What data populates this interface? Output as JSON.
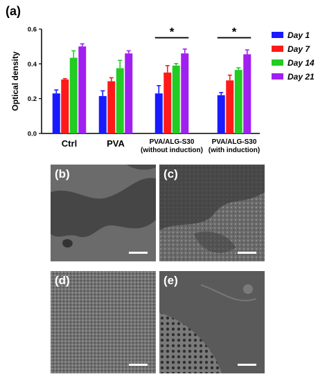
{
  "figure": {
    "main_label": "(a)"
  },
  "chart_data": {
    "type": "bar",
    "ylabel": "Optical density",
    "xlabel": "",
    "ylim": [
      0,
      0.6
    ],
    "yticks": [
      "0.0",
      "0.2",
      "0.4",
      "0.6"
    ],
    "grid": false,
    "legend_position": "right",
    "categories": [
      {
        "line1": "Ctrl",
        "line2": ""
      },
      {
        "line1": "PVA",
        "line2": ""
      },
      {
        "line1": "PVA/ALG-S30",
        "line2": "(without induction)"
      },
      {
        "line1": "PVA/ALG-S30",
        "line2": "(with induction)"
      }
    ],
    "series": [
      {
        "name": "Day 1",
        "color": "#1a1aff",
        "values": [
          0.23,
          0.215,
          0.23,
          0.22
        ],
        "errors": [
          0.02,
          0.03,
          0.045,
          0.015
        ]
      },
      {
        "name": "Day 7",
        "color": "#ff1a1a",
        "values": [
          0.31,
          0.3,
          0.35,
          0.305
        ],
        "errors": [
          0.005,
          0.02,
          0.04,
          0.03
        ]
      },
      {
        "name": "Day 14",
        "color": "#22cc22",
        "values": [
          0.435,
          0.375,
          0.39,
          0.365
        ],
        "errors": [
          0.04,
          0.045,
          0.012,
          0.012
        ]
      },
      {
        "name": "Day 21",
        "color": "#a020f0",
        "values": [
          0.5,
          0.46,
          0.46,
          0.455
        ],
        "errors": [
          0.015,
          0.015,
          0.025,
          0.025
        ]
      }
    ],
    "significance": [
      {
        "category_index": 2,
        "label": "*"
      },
      {
        "category_index": 3,
        "label": "*"
      }
    ]
  },
  "panels": [
    {
      "label": "(b)",
      "texture": "smooth"
    },
    {
      "label": "(c)",
      "texture": "partial"
    },
    {
      "label": "(d)",
      "texture": "dense"
    },
    {
      "label": "(e)",
      "texture": "porous"
    }
  ]
}
